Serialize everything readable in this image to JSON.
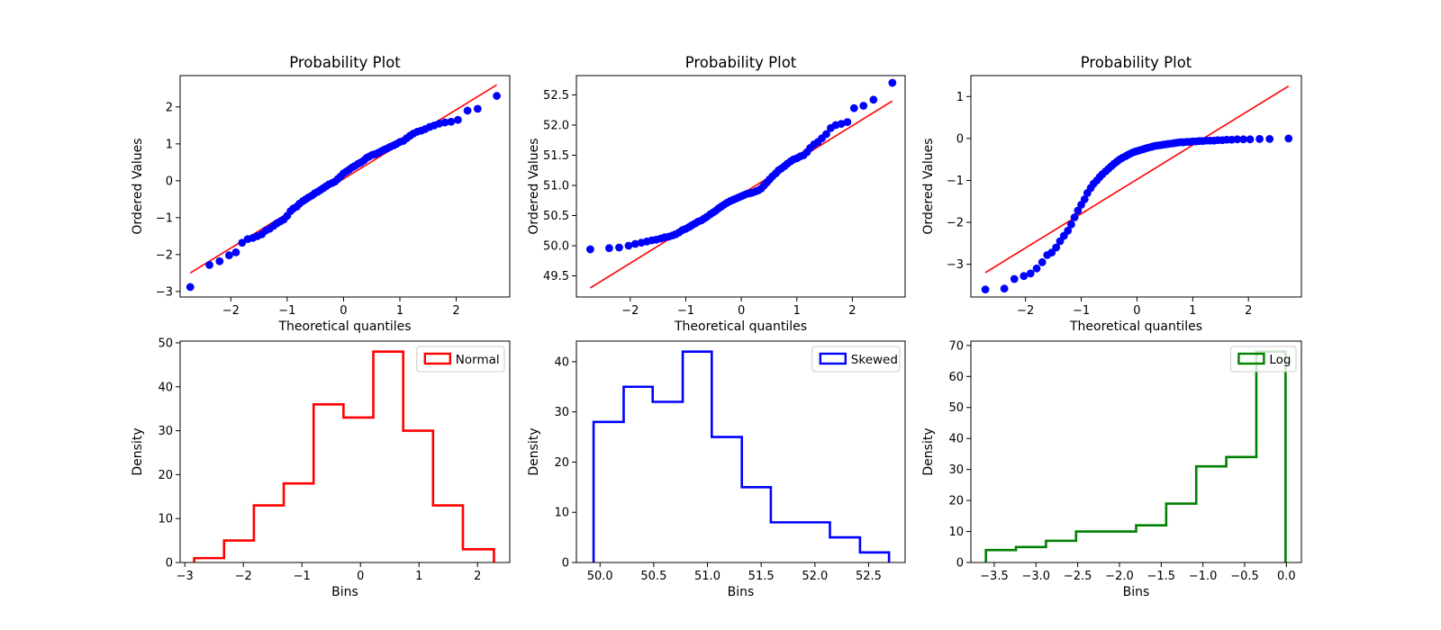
{
  "chart_data": [
    {
      "type": "scatter",
      "title": "Probability Plot",
      "xlabel": "Theoretical quantiles",
      "ylabel": "Ordered Values",
      "xlim": [
        -2.9,
        2.95
      ],
      "ylim": [
        -3.15,
        2.85
      ],
      "xticks": [
        -2,
        -1,
        0,
        1,
        2
      ],
      "yticks": [
        -3,
        -2,
        -1,
        0,
        1,
        2
      ],
      "tick_labels_x": [
        "−2",
        "−1",
        "0",
        "1",
        "2"
      ],
      "tick_labels_y": [
        "−3",
        "−2",
        "−1",
        "0",
        "1",
        "2"
      ],
      "grid": false,
      "points_color": "#0000ff",
      "line_color": "#ff0000",
      "series": [
        {
          "kind": "points",
          "x": [
            -2.72,
            -2.38,
            -2.2,
            -2.03,
            -1.91,
            -1.8,
            -1.7,
            -1.61,
            -1.53,
            -1.45,
            -1.38,
            -1.31,
            -1.24,
            -1.18,
            -1.12,
            -1.06,
            -1.0,
            -0.94,
            -0.89,
            -0.83,
            -0.78,
            -0.72,
            -0.67,
            -0.62,
            -0.56,
            -0.51,
            -0.46,
            -0.41,
            -0.36,
            -0.31,
            -0.26,
            -0.2,
            -0.15,
            -0.1,
            -0.05,
            0.0,
            0.05,
            0.1,
            0.15,
            0.2,
            0.26,
            0.31,
            0.36,
            0.41,
            0.46,
            0.51,
            0.56,
            0.62,
            0.67,
            0.72,
            0.78,
            0.83,
            0.89,
            0.94,
            1.0,
            1.06,
            1.12,
            1.18,
            1.24,
            1.31,
            1.38,
            1.45,
            1.53,
            1.61,
            1.7,
            1.8,
            1.91,
            2.03,
            2.2,
            2.38,
            2.72
          ],
          "y": [
            -2.88,
            -2.28,
            -2.18,
            -2.02,
            -1.94,
            -1.68,
            -1.58,
            -1.55,
            -1.5,
            -1.45,
            -1.35,
            -1.3,
            -1.22,
            -1.15,
            -1.1,
            -1.05,
            -0.95,
            -0.82,
            -0.75,
            -0.7,
            -0.62,
            -0.55,
            -0.5,
            -0.45,
            -0.4,
            -0.34,
            -0.3,
            -0.25,
            -0.2,
            -0.15,
            -0.1,
            -0.06,
            -0.02,
            0.05,
            0.12,
            0.2,
            0.25,
            0.3,
            0.36,
            0.4,
            0.46,
            0.5,
            0.55,
            0.62,
            0.66,
            0.7,
            0.72,
            0.76,
            0.8,
            0.84,
            0.88,
            0.92,
            0.96,
            1.0,
            1.05,
            1.08,
            1.15,
            1.22,
            1.28,
            1.33,
            1.36,
            1.4,
            1.46,
            1.5,
            1.55,
            1.58,
            1.6,
            1.65,
            1.9,
            1.95,
            2.3
          ]
        },
        {
          "kind": "fit-line",
          "x": [
            -2.72,
            2.72
          ],
          "y": [
            -2.5,
            2.6
          ]
        }
      ]
    },
    {
      "type": "scatter",
      "title": "Probability Plot",
      "xlabel": "Theoretical quantiles",
      "ylabel": "Ordered Values",
      "xlim": [
        -2.97,
        2.95
      ],
      "ylim": [
        49.15,
        52.82
      ],
      "xticks": [
        -2,
        -1,
        0,
        1,
        2
      ],
      "yticks": [
        49.5,
        50.0,
        50.5,
        51.0,
        51.5,
        52.0,
        52.5
      ],
      "tick_labels_x": [
        "−2",
        "−1",
        "0",
        "1",
        "2"
      ],
      "tick_labels_y": [
        "49.5",
        "50.0",
        "50.5",
        "51.0",
        "51.5",
        "52.0",
        "52.5"
      ],
      "grid": false,
      "points_color": "#0000ff",
      "line_color": "#ff0000",
      "series": [
        {
          "kind": "points",
          "x": [
            -2.72,
            -2.38,
            -2.2,
            -2.03,
            -1.91,
            -1.8,
            -1.7,
            -1.61,
            -1.53,
            -1.45,
            -1.38,
            -1.31,
            -1.24,
            -1.18,
            -1.12,
            -1.06,
            -1.0,
            -0.94,
            -0.89,
            -0.83,
            -0.78,
            -0.72,
            -0.67,
            -0.62,
            -0.56,
            -0.51,
            -0.46,
            -0.41,
            -0.36,
            -0.31,
            -0.26,
            -0.2,
            -0.15,
            -0.1,
            -0.05,
            0.0,
            0.05,
            0.1,
            0.15,
            0.2,
            0.26,
            0.31,
            0.36,
            0.41,
            0.46,
            0.51,
            0.56,
            0.62,
            0.67,
            0.72,
            0.78,
            0.83,
            0.89,
            0.94,
            1.0,
            1.06,
            1.12,
            1.18,
            1.24,
            1.31,
            1.38,
            1.45,
            1.53,
            1.61,
            1.7,
            1.8,
            1.91,
            2.03,
            2.2,
            2.38,
            2.72
          ],
          "y": [
            49.94,
            49.96,
            49.97,
            50.0,
            50.03,
            50.05,
            50.07,
            50.09,
            50.1,
            50.12,
            50.14,
            50.15,
            50.17,
            50.19,
            50.22,
            50.26,
            50.28,
            50.31,
            50.34,
            50.37,
            50.4,
            50.42,
            50.45,
            50.48,
            50.52,
            50.55,
            50.58,
            50.62,
            50.65,
            50.68,
            50.71,
            50.74,
            50.76,
            50.78,
            50.8,
            50.82,
            50.84,
            50.86,
            50.87,
            50.88,
            50.9,
            50.92,
            50.95,
            51.0,
            51.05,
            51.1,
            51.15,
            51.2,
            51.25,
            51.28,
            51.32,
            51.36,
            51.4,
            51.43,
            51.45,
            51.48,
            51.5,
            51.55,
            51.62,
            51.68,
            51.72,
            51.78,
            51.85,
            51.95,
            52.0,
            52.02,
            52.05,
            52.28,
            52.32,
            52.42,
            52.7
          ]
        },
        {
          "kind": "fit-line",
          "x": [
            -2.72,
            2.72
          ],
          "y": [
            49.3,
            52.4
          ]
        }
      ]
    },
    {
      "type": "scatter",
      "title": "Probability Plot",
      "xlabel": "Theoretical quantiles",
      "ylabel": "Ordered Values",
      "xlim": [
        -2.98,
        2.95
      ],
      "ylim": [
        -3.78,
        1.5
      ],
      "xticks": [
        -2,
        -1,
        0,
        1,
        2
      ],
      "yticks": [
        -3,
        -2,
        -1,
        0,
        1
      ],
      "tick_labels_x": [
        "−2",
        "−1",
        "0",
        "1",
        "2"
      ],
      "tick_labels_y": [
        "−3",
        "−2",
        "−1",
        "0",
        "1"
      ],
      "grid": false,
      "points_color": "#0000ff",
      "line_color": "#ff0000",
      "series": [
        {
          "kind": "points",
          "x": [
            -2.72,
            -2.38,
            -2.2,
            -2.03,
            -1.91,
            -1.8,
            -1.7,
            -1.61,
            -1.53,
            -1.45,
            -1.38,
            -1.31,
            -1.24,
            -1.18,
            -1.12,
            -1.06,
            -1.0,
            -0.94,
            -0.89,
            -0.83,
            -0.78,
            -0.72,
            -0.67,
            -0.62,
            -0.56,
            -0.51,
            -0.46,
            -0.41,
            -0.36,
            -0.31,
            -0.26,
            -0.2,
            -0.15,
            -0.1,
            -0.05,
            0.0,
            0.05,
            0.1,
            0.15,
            0.2,
            0.26,
            0.31,
            0.36,
            0.41,
            0.46,
            0.51,
            0.56,
            0.62,
            0.67,
            0.72,
            0.78,
            0.83,
            0.89,
            0.94,
            1.0,
            1.06,
            1.12,
            1.18,
            1.24,
            1.31,
            1.38,
            1.45,
            1.53,
            1.61,
            1.7,
            1.8,
            1.91,
            2.03,
            2.2,
            2.38,
            2.72
          ],
          "y": [
            -3.6,
            -3.58,
            -3.35,
            -3.28,
            -3.22,
            -3.1,
            -2.95,
            -2.78,
            -2.72,
            -2.6,
            -2.45,
            -2.32,
            -2.2,
            -2.05,
            -1.88,
            -1.72,
            -1.58,
            -1.45,
            -1.3,
            -1.18,
            -1.08,
            -1.0,
            -0.92,
            -0.85,
            -0.78,
            -0.72,
            -0.66,
            -0.6,
            -0.55,
            -0.5,
            -0.46,
            -0.42,
            -0.38,
            -0.35,
            -0.32,
            -0.3,
            -0.28,
            -0.26,
            -0.24,
            -0.22,
            -0.2,
            -0.18,
            -0.17,
            -0.16,
            -0.15,
            -0.14,
            -0.13,
            -0.12,
            -0.11,
            -0.1,
            -0.09,
            -0.09,
            -0.08,
            -0.08,
            -0.07,
            -0.07,
            -0.06,
            -0.06,
            -0.05,
            -0.05,
            -0.05,
            -0.04,
            -0.04,
            -0.03,
            -0.03,
            -0.02,
            -0.02,
            -0.02,
            -0.01,
            -0.01,
            0.0
          ]
        },
        {
          "kind": "fit-line",
          "x": [
            -2.72,
            2.72
          ],
          "y": [
            -3.2,
            1.25
          ]
        }
      ]
    },
    {
      "type": "histogram-step",
      "title": "",
      "xlabel": "Bins",
      "ylabel": "Density",
      "xlim": [
        -3.08,
        2.55
      ],
      "ylim": [
        0,
        50.4
      ],
      "xticks": [
        -3,
        -2,
        -1,
        0,
        1,
        2
      ],
      "yticks": [
        0,
        10,
        20,
        30,
        40,
        50
      ],
      "tick_labels_x": [
        "−3",
        "−2",
        "−1",
        "0",
        "1",
        "2"
      ],
      "tick_labels_y": [
        "0",
        "10",
        "20",
        "30",
        "40",
        "50"
      ],
      "color": "#ff0000",
      "legend": {
        "label": "Normal",
        "placement": "upper-right"
      },
      "bin_edges": [
        -2.84,
        -2.33,
        -1.82,
        -1.31,
        -0.8,
        -0.29,
        0.22,
        0.73,
        1.24,
        1.75,
        2.28
      ],
      "counts": [
        1,
        5,
        13,
        18,
        36,
        33,
        48,
        30,
        13,
        3
      ]
    },
    {
      "type": "histogram-step",
      "title": "",
      "xlabel": "Bins",
      "ylabel": "Density",
      "xlim": [
        49.78,
        52.84
      ],
      "ylim": [
        0,
        44.1
      ],
      "xticks": [
        50.0,
        50.5,
        51.0,
        51.5,
        52.0,
        52.5
      ],
      "yticks": [
        0,
        10,
        20,
        30,
        40
      ],
      "tick_labels_x": [
        "50.0",
        "50.5",
        "51.0",
        "51.5",
        "52.0",
        "52.5"
      ],
      "tick_labels_y": [
        "0",
        "10",
        "20",
        "30",
        "40"
      ],
      "color": "#0000ff",
      "legend": {
        "label": "Skewed",
        "placement": "upper-right"
      },
      "bin_edges": [
        49.94,
        50.22,
        50.49,
        50.77,
        51.04,
        51.32,
        51.59,
        51.87,
        52.14,
        52.42,
        52.69
      ],
      "counts": [
        28,
        35,
        32,
        42,
        25,
        15,
        8,
        8,
        5,
        2
      ]
    },
    {
      "type": "histogram-step",
      "title": "",
      "xlabel": "Bins",
      "ylabel": "Density",
      "xlim": [
        -3.78,
        0.18
      ],
      "ylim": [
        0,
        71.4
      ],
      "xticks": [
        -3.5,
        -3.0,
        -2.5,
        -2.0,
        -1.5,
        -1.0,
        -0.5,
        0.0
      ],
      "tick_labels_x": [
        "−3.5",
        "−3.0",
        "−2.5",
        "−2.0",
        "−1.5",
        "−1.0",
        "−0.5",
        "0.0"
      ],
      "yticks": [
        0,
        10,
        20,
        30,
        40,
        50,
        60,
        70
      ],
      "tick_labels_y": [
        "0",
        "10",
        "20",
        "30",
        "40",
        "50",
        "60",
        "70"
      ],
      "color": "#008000",
      "legend": {
        "label": "Log",
        "placement": "upper-right"
      },
      "bin_edges": [
        -3.6,
        -3.24,
        -2.88,
        -2.52,
        -2.16,
        -1.8,
        -1.44,
        -1.08,
        -0.72,
        -0.36,
        -0.01
      ],
      "counts": [
        4,
        5,
        7,
        10,
        10,
        12,
        19,
        31,
        34,
        68
      ]
    }
  ]
}
